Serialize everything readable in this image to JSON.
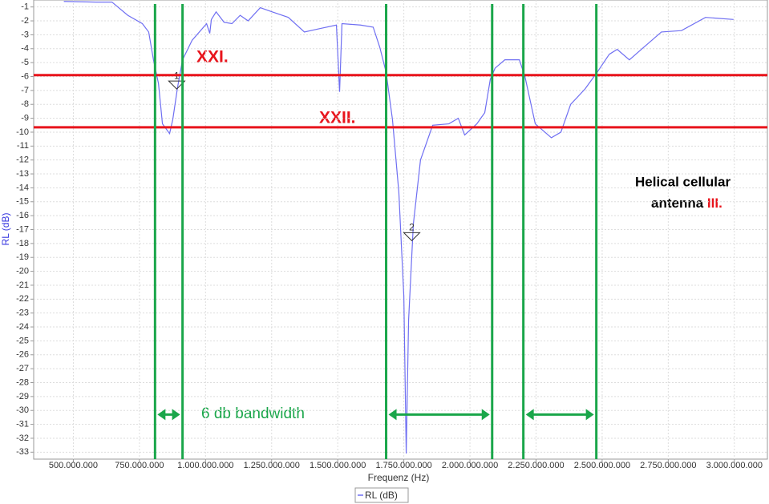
{
  "chart_data": {
    "type": "line",
    "xlabel": "Frequenz (Hz)",
    "ylabel": "RL (dB)",
    "xlim": [
      350000000,
      3125000000
    ],
    "ylim": [
      -33.5,
      -0.5
    ],
    "xticks": [
      {
        "value": 500000000,
        "label": "500.000.000"
      },
      {
        "value": 750000000,
        "label": "750.000.000"
      },
      {
        "value": 1000000000,
        "label": "1.000.000.000"
      },
      {
        "value": 1250000000,
        "label": "1.250.000.000"
      },
      {
        "value": 1500000000,
        "label": "1.500.000.000"
      },
      {
        "value": 1750000000,
        "label": "1.750.000.000"
      },
      {
        "value": 2000000000,
        "label": "2.000.000.000"
      },
      {
        "value": 2250000000,
        "label": "2.250.000.000"
      },
      {
        "value": 2500000000,
        "label": "2.500.000.000"
      },
      {
        "value": 2750000000,
        "label": "2.750.000.000"
      },
      {
        "value": 3000000000,
        "label": "3.000.000.000"
      }
    ],
    "yticks": [
      -1,
      -2,
      -3,
      -4,
      -5,
      -6,
      -7,
      -8,
      -9,
      -10,
      -11,
      -12,
      -13,
      -14,
      -15,
      -16,
      -17,
      -18,
      -19,
      -20,
      -21,
      -22,
      -23,
      -24,
      -25,
      -26,
      -27,
      -28,
      -29,
      -30,
      -31,
      -32,
      -33
    ],
    "grid": true,
    "legend": "bottom",
    "series": [
      {
        "name": "RL (dB)",
        "color": "#6f6ff2",
        "x": [
          464000000,
          585000000,
          646000000,
          706000000,
          761000000,
          785000000,
          803000000,
          822000000,
          837000000,
          864000000,
          876000000,
          894000000,
          913000000,
          949000000,
          1004000000,
          1016000000,
          1022000000,
          1040000000,
          1070000000,
          1100000000,
          1131000000,
          1161000000,
          1207000000,
          1252000000,
          1313000000,
          1374000000,
          1434000000,
          1495000000,
          1507000000,
          1516000000,
          1586000000,
          1634000000,
          1659000000,
          1683000000,
          1707000000,
          1731000000,
          1750000000,
          1759000000,
          1768000000,
          1786000000,
          1813000000,
          1859000000,
          1920000000,
          1956000000,
          1980000000,
          2026000000,
          2056000000,
          2077000000,
          2095000000,
          2132000000,
          2187000000,
          2208000000,
          2247000000,
          2308000000,
          2344000000,
          2381000000,
          2435000000,
          2481000000,
          2527000000,
          2557000000,
          2603000000,
          2648000000,
          2724000000,
          2800000000,
          2891000000,
          2997000000
        ],
        "values": [
          -0.6,
          -0.65,
          -0.65,
          -1.6,
          -2.2,
          -2.8,
          -4.8,
          -6.5,
          -9.4,
          -10.1,
          -9.1,
          -6.8,
          -4.8,
          -3.4,
          -2.2,
          -2.9,
          -1.9,
          -1.35,
          -2.1,
          -2.2,
          -1.6,
          -2.0,
          -1.05,
          -1.35,
          -1.75,
          -2.8,
          -2.55,
          -2.3,
          -7.1,
          -2.2,
          -2.3,
          -2.45,
          -3.9,
          -5.7,
          -9.1,
          -14.3,
          -21.8,
          -33.1,
          -23.5,
          -16.6,
          -12.0,
          -9.5,
          -9.4,
          -9.0,
          -10.2,
          -9.4,
          -8.6,
          -6.2,
          -5.4,
          -4.8,
          -4.8,
          -6.0,
          -9.4,
          -10.4,
          -10.0,
          -8.0,
          -6.9,
          -5.7,
          -4.4,
          -4.05,
          -4.8,
          -4.05,
          -2.8,
          -2.7,
          -1.75,
          -1.9
        ]
      }
    ],
    "markers": [
      {
        "label": "1",
        "x": 891000000,
        "y": -6.9
      },
      {
        "label": "2",
        "x": 1780000000,
        "y": -17.8
      }
    ],
    "hlines": {
      "color": "#e8141c",
      "values": [
        -5.9,
        -9.65
      ]
    },
    "bands": {
      "color": "#1aa64a",
      "edges": [
        [
          809000000,
          913000000
        ],
        [
          1683000000,
          2084000000
        ],
        [
          2202000000,
          2478000000
        ]
      ],
      "arrow_y": -30.3
    },
    "annotations": [
      "XXI.",
      "XXII.",
      "6 db bandwidth"
    ],
    "antenna_label": [
      "Helical cellular",
      "antenna",
      "III."
    ]
  }
}
